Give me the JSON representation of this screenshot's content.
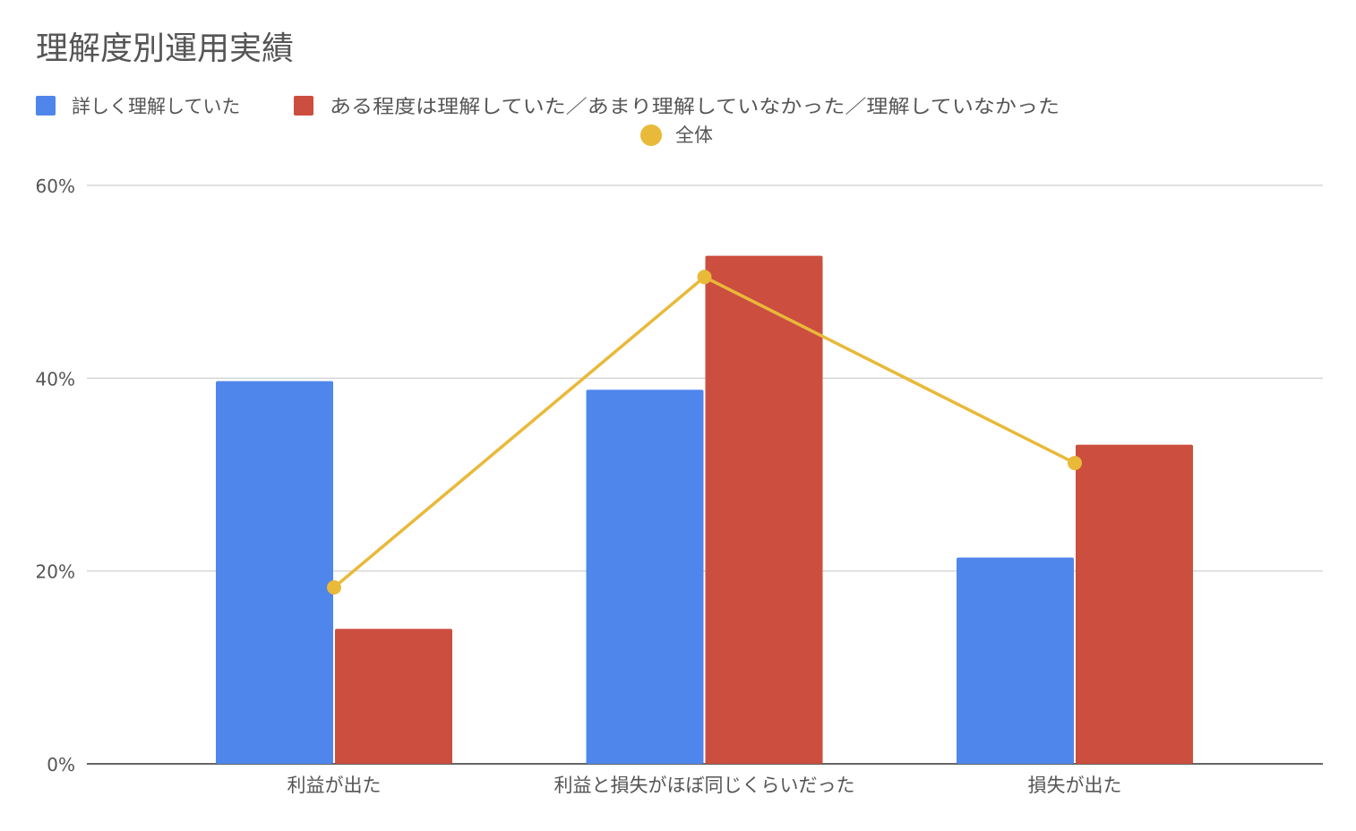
{
  "chart_data": {
    "type": "bar",
    "title": "理解度別運用実績",
    "categories": [
      "利益が出た",
      "利益と損失がほぼ同じくらいだった",
      "損失が出た"
    ],
    "series": [
      {
        "name": "詳しく理解していた",
        "type": "bar",
        "color": "#4F86EB",
        "values": [
          39.7,
          38.8,
          21.4
        ]
      },
      {
        "name": "ある程度は理解していた／あまり理解していなかった／理解していなかった",
        "type": "bar",
        "color": "#CC4E3E",
        "values": [
          14.0,
          52.7,
          33.1
        ]
      },
      {
        "name": "全体",
        "type": "line",
        "color": "#E9B93A",
        "values": [
          18.3,
          50.5,
          31.2
        ]
      }
    ],
    "ylim": [
      0,
      60
    ],
    "yticks": [
      0,
      20,
      40,
      60
    ],
    "ytick_labels": [
      "0%",
      "20%",
      "40%",
      "60%"
    ],
    "xlabel": "",
    "ylabel": "",
    "grid": true,
    "legend_position": "top"
  }
}
